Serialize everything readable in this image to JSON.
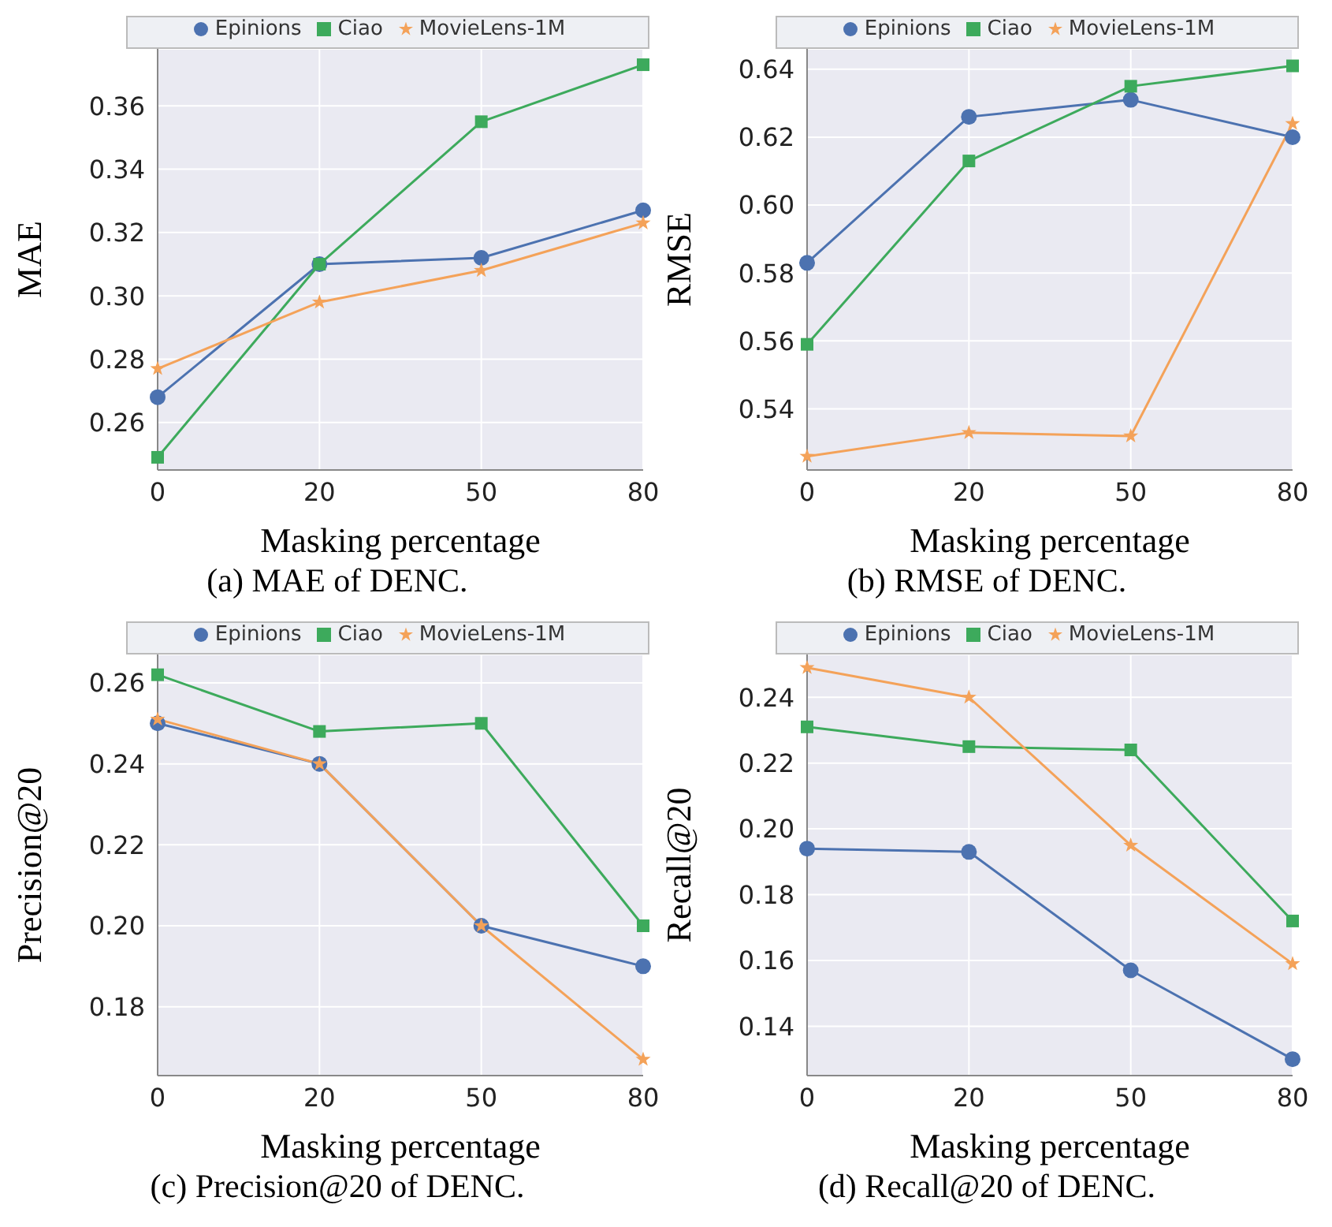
{
  "chart_data": [
    {
      "type": "line",
      "title": "(a) MAE of DENC.",
      "xlabel": "Masking percentage",
      "ylabel": "MAE",
      "categories": [
        "0",
        "20",
        "50",
        "80"
      ],
      "ylim": [
        0.245,
        0.378
      ],
      "yticks": [
        {
          "value": 0.26,
          "label": "0.26"
        },
        {
          "value": 0.28,
          "label": "0.28"
        },
        {
          "value": 0.3,
          "label": "0.30"
        },
        {
          "value": 0.32,
          "label": "0.32"
        },
        {
          "value": 0.34,
          "label": "0.34"
        },
        {
          "value": 0.36,
          "label": "0.36"
        }
      ],
      "grid": true,
      "legend": "top",
      "series": [
        {
          "name": "Epinions",
          "color": "#4c72b0",
          "marker": "circle",
          "values": [
            0.268,
            0.31,
            0.312,
            0.327
          ]
        },
        {
          "name": "Ciao",
          "color": "#3daa5c",
          "marker": "square",
          "values": [
            0.249,
            0.31,
            0.355,
            0.373
          ]
        },
        {
          "name": "MovieLens-1M",
          "color": "#f4a259",
          "marker": "star",
          "values": [
            0.277,
            0.298,
            0.308,
            0.323
          ]
        }
      ]
    },
    {
      "type": "line",
      "title": "(b) RMSE of DENC.",
      "xlabel": "Masking percentage",
      "ylabel": "RMSE",
      "categories": [
        "0",
        "20",
        "50",
        "80"
      ],
      "ylim": [
        0.522,
        0.646
      ],
      "yticks": [
        {
          "value": 0.54,
          "label": "0.54"
        },
        {
          "value": 0.56,
          "label": "0.56"
        },
        {
          "value": 0.58,
          "label": "0.58"
        },
        {
          "value": 0.6,
          "label": "0.60"
        },
        {
          "value": 0.62,
          "label": "0.62"
        },
        {
          "value": 0.64,
          "label": "0.64"
        }
      ],
      "grid": true,
      "legend": "top",
      "series": [
        {
          "name": "Epinions",
          "color": "#4c72b0",
          "marker": "circle",
          "values": [
            0.583,
            0.626,
            0.631,
            0.62
          ]
        },
        {
          "name": "Ciao",
          "color": "#3daa5c",
          "marker": "square",
          "values": [
            0.559,
            0.613,
            0.635,
            0.641
          ]
        },
        {
          "name": "MovieLens-1M",
          "color": "#f4a259",
          "marker": "star",
          "values": [
            0.526,
            0.533,
            0.532,
            0.624
          ]
        }
      ]
    },
    {
      "type": "line",
      "title": "(c) Precision@20 of DENC.",
      "xlabel": "Masking percentage",
      "ylabel": "Precision@20",
      "categories": [
        "0",
        "20",
        "50",
        "80"
      ],
      "ylim": [
        0.163,
        0.267
      ],
      "yticks": [
        {
          "value": 0.18,
          "label": "0.18"
        },
        {
          "value": 0.2,
          "label": "0.20"
        },
        {
          "value": 0.22,
          "label": "0.22"
        },
        {
          "value": 0.24,
          "label": "0.24"
        },
        {
          "value": 0.26,
          "label": "0.26"
        }
      ],
      "grid": true,
      "legend": "top",
      "series": [
        {
          "name": "Epinions",
          "color": "#4c72b0",
          "marker": "circle",
          "values": [
            0.25,
            0.24,
            0.2,
            0.19
          ]
        },
        {
          "name": "Ciao",
          "color": "#3daa5c",
          "marker": "square",
          "values": [
            0.262,
            0.248,
            0.25,
            0.2
          ]
        },
        {
          "name": "MovieLens-1M",
          "color": "#f4a259",
          "marker": "star",
          "values": [
            0.251,
            0.24,
            0.2,
            0.167
          ]
        }
      ]
    },
    {
      "type": "line",
      "title": "(d) Recall@20 of DENC.",
      "xlabel": "Masking percentage",
      "ylabel": "Recall@20",
      "categories": [
        "0",
        "20",
        "50",
        "80"
      ],
      "ylim": [
        0.125,
        0.253
      ],
      "yticks": [
        {
          "value": 0.14,
          "label": "0.14"
        },
        {
          "value": 0.16,
          "label": "0.16"
        },
        {
          "value": 0.18,
          "label": "0.18"
        },
        {
          "value": 0.2,
          "label": "0.20"
        },
        {
          "value": 0.22,
          "label": "0.22"
        },
        {
          "value": 0.24,
          "label": "0.24"
        }
      ],
      "grid": true,
      "legend": "top",
      "series": [
        {
          "name": "Epinions",
          "color": "#4c72b0",
          "marker": "circle",
          "values": [
            0.194,
            0.193,
            0.157,
            0.13
          ]
        },
        {
          "name": "Ciao",
          "color": "#3daa5c",
          "marker": "square",
          "values": [
            0.231,
            0.225,
            0.224,
            0.172
          ]
        },
        {
          "name": "MovieLens-1M",
          "color": "#f4a259",
          "marker": "star",
          "values": [
            0.249,
            0.24,
            0.195,
            0.159
          ]
        }
      ]
    }
  ]
}
